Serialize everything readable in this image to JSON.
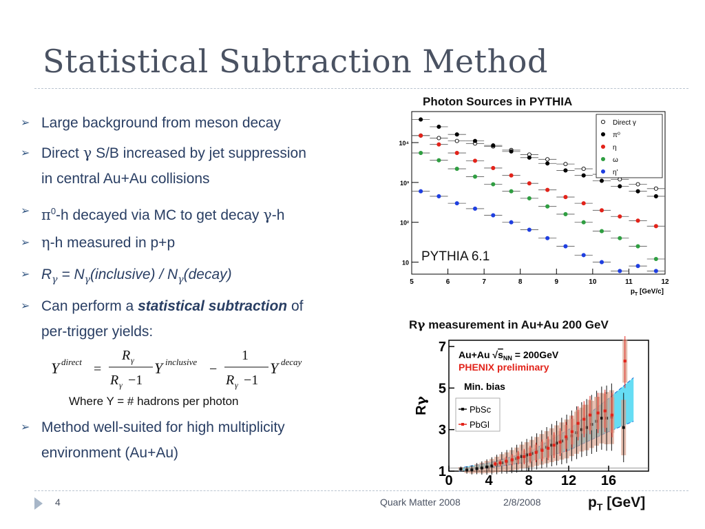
{
  "slide": {
    "title": "Statistical Subtraction Method",
    "footer_number": "4",
    "footer_conference": "Quark Matter 2008",
    "footer_date": "2/8/2008"
  },
  "bullets": {
    "b1": "Large background from meson decay",
    "b2a": "Direct ",
    "b2sym": "γ",
    "b2b": " S/B increased by jet suppression",
    "b2c": "in central Au+Au collisions",
    "b3sym": "π",
    "b3sup": "0",
    "b3a": "-h decayed via MC to get decay ",
    "b3sym2": "γ",
    "b3b": "-h",
    "b4sym": "η",
    "b4a": "-h measured in p+p",
    "b5R": "R",
    "b5g": "γ",
    "b5eq": " = N",
    "b5g2": "γ",
    "b5inc": "(inclusive) / N",
    "b5g3": "γ",
    "b5dec": "(decay)",
    "b6a": "Can perform a ",
    "b6b": "statistical subtraction",
    "b6c": " of",
    "b6d": "per-trigger yields:",
    "where": "Where Y = # hadrons per photon",
    "b7a": "Method well-suited for high multiplicity",
    "b7b": "environment (Au+Au)"
  },
  "equation": {
    "Y": "Y",
    "direct": "direct",
    "equals": "=",
    "R": "R",
    "gamma": "γ",
    "inclusive": "inclusive",
    "minus": "−",
    "one": "1",
    "decay": "decay",
    "denom_minus": "−1"
  },
  "chart_data": [
    {
      "type": "scatter",
      "title": "Photon Sources in PYTHIA",
      "xlabel": "p_T [GeV/c]",
      "xlabel_display": "p",
      "xlabel_sub": "T",
      "xlabel_unit": " [GeV/c]",
      "annotation": "PYTHIA 6.1",
      "xlim": [
        5,
        12
      ],
      "ylim": [
        5,
        60000
      ],
      "log_y": true,
      "x_ticks": [
        "5",
        "6",
        "7",
        "8",
        "9",
        "10",
        "11",
        "12"
      ],
      "y_ticks": [
        {
          "value": 10,
          "label": "10"
        },
        {
          "value": 100,
          "label": "10²"
        },
        {
          "value": 1000,
          "label": "10³"
        },
        {
          "value": 10000,
          "label": "10⁴"
        }
      ],
      "legend_position": "top-right",
      "series": [
        {
          "name": "Direct γ",
          "color": "#ffffff",
          "stroke": "#000000",
          "x": [
            5.25,
            5.75,
            6.25,
            6.75,
            7.25,
            7.75,
            8.25,
            8.75,
            9.25,
            9.75,
            10.25,
            10.75,
            11.25,
            11.75
          ],
          "y": [
            15000,
            13000,
            11000,
            9500,
            8000,
            6500,
            5000,
            3800,
            2900,
            2200,
            1600,
            1200,
            900,
            700
          ]
        },
        {
          "name": "π⁰",
          "color": "#000000",
          "stroke": "#000000",
          "x": [
            5.25,
            5.75,
            6.25,
            6.75,
            7.25,
            7.75,
            8.25,
            8.75,
            9.25,
            9.75,
            10.25,
            10.75,
            11.25,
            11.75
          ],
          "y": [
            38000,
            25000,
            16000,
            11000,
            8500,
            6000,
            4200,
            3000,
            2000,
            1500,
            1100,
            800,
            600,
            450
          ]
        },
        {
          "name": "η",
          "color": "#e2231a",
          "stroke": "#e2231a",
          "x": [
            5.25,
            5.75,
            6.25,
            6.75,
            7.25,
            7.75,
            8.25,
            8.75,
            9.25,
            9.75,
            10.25,
            10.75,
            11.25,
            11.75
          ],
          "y": [
            15000,
            9000,
            5500,
            3500,
            2300,
            1500,
            950,
            650,
            430,
            300,
            200,
            140,
            110,
            80
          ]
        },
        {
          "name": "ω",
          "color": "#2f9e41",
          "stroke": "#2f9e41",
          "x": [
            5.25,
            5.75,
            6.25,
            6.75,
            7.25,
            7.75,
            8.25,
            8.75,
            9.25,
            9.75,
            10.25,
            10.75,
            11.25,
            11.75
          ],
          "y": [
            5500,
            3600,
            2200,
            1400,
            900,
            600,
            400,
            250,
            160,
            100,
            60,
            40,
            25,
            12
          ]
        },
        {
          "name": "η'",
          "color": "#1f3fe0",
          "stroke": "#1f3fe0",
          "x": [
            5.25,
            5.75,
            6.25,
            6.75,
            7.25,
            7.75,
            8.25,
            8.75,
            9.25,
            9.75,
            10.25,
            10.75,
            11.25,
            11.75
          ],
          "y": [
            600,
            450,
            300,
            220,
            150,
            100,
            65,
            40,
            25,
            15,
            10,
            6,
            8,
            6
          ]
        }
      ]
    },
    {
      "type": "scatter",
      "title_sym": "R",
      "title_g": "γ",
      "title_rest": " measurement in Au+Au 200 GeV",
      "ylabel_R": "R",
      "ylabel_g": "γ",
      "xlabel": "p_T [GeV]",
      "xlabel_display": "p",
      "xlabel_sub": "T",
      "xlabel_unit": " [GeV]",
      "xlim": [
        0,
        20
      ],
      "ylim": [
        1,
        7.3
      ],
      "x_ticks": [
        "0",
        "4",
        "8",
        "12",
        "16"
      ],
      "y_ticks": [
        "1",
        "3",
        "5",
        "7"
      ],
      "legend_line1": "Au+Au ",
      "legend_sqrt": "s",
      "legend_sub": "NN",
      "legend_line1b": " = 200GeV",
      "legend_line2": "PHENIX preliminary",
      "legend_line3": "Min. bias",
      "legend_position": "top-left",
      "series": [
        {
          "name": "PbSc",
          "color": "#111111",
          "x": [
            1.2,
            1.8,
            2.3,
            2.8,
            3.3,
            3.8,
            4.3,
            4.8,
            5.3,
            5.8,
            6.3,
            6.8,
            7.3,
            7.8,
            8.3,
            8.8,
            9.3,
            9.8,
            10.3,
            10.8,
            11.3,
            11.8,
            12.3,
            12.8,
            13.3,
            13.8,
            14.3,
            14.8,
            15.3,
            15.8,
            16.3,
            17.5
          ],
          "y": [
            1.1,
            1.05,
            1.06,
            1.12,
            1.15,
            1.2,
            1.25,
            1.32,
            1.4,
            1.45,
            1.52,
            1.6,
            1.7,
            1.78,
            1.85,
            1.95,
            2.05,
            2.15,
            2.25,
            2.35,
            2.45,
            2.55,
            2.7,
            2.85,
            3.0,
            3.1,
            3.25,
            3.4,
            3.55,
            3.55,
            3.6,
            3.1
          ]
        },
        {
          "name": "PbGl",
          "color": "#e2231a",
          "x": [
            4.5,
            5.0,
            5.6,
            6.2,
            6.8,
            7.4,
            8.0,
            8.6,
            9.2,
            9.8,
            10.4,
            11.0,
            11.6,
            12.2,
            12.8,
            13.4,
            14.0,
            14.8,
            15.5,
            16.2,
            17.5
          ],
          "y": [
            1.35,
            1.4,
            1.48,
            1.55,
            1.65,
            1.7,
            1.8,
            1.9,
            2.0,
            2.1,
            2.25,
            2.4,
            2.65,
            2.9,
            3.3,
            3.5,
            3.7,
            3.8,
            3.9,
            3.7,
            6.3
          ]
        }
      ],
      "band": {
        "x": [
          1,
          4,
          8,
          12,
          16,
          18.5
        ],
        "low": [
          1.0,
          1.15,
          1.45,
          2.0,
          2.9,
          3.4
        ],
        "high": [
          1.15,
          1.4,
          1.9,
          3.0,
          4.5,
          5.5
        ]
      }
    }
  ]
}
